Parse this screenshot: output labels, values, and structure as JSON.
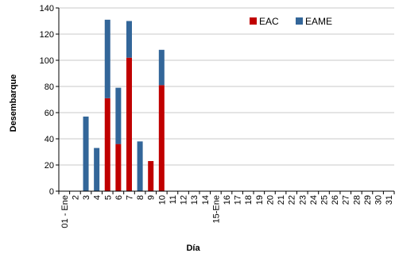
{
  "chart_data": {
    "type": "bar",
    "stacked": true,
    "xlabel": "Día",
    "ylabel": "Desembarque",
    "ylim": [
      0,
      140
    ],
    "ytick_step": 20,
    "grid": "horizontal",
    "legend_position": "top-right",
    "categories": [
      "01 - Ene",
      "2",
      "3",
      "4",
      "5",
      "6",
      "7",
      "8",
      "9",
      "10",
      "11",
      "12",
      "13",
      "14",
      "15-Ene",
      "16",
      "17",
      "18",
      "19",
      "20",
      "21",
      "22",
      "23",
      "24",
      "25",
      "26",
      "27",
      "28",
      "29",
      "30",
      "31"
    ],
    "series": [
      {
        "name": "EAC",
        "color": "#c00000",
        "values": [
          0,
          0,
          0,
          0,
          71,
          36,
          102,
          0,
          23,
          81,
          0,
          0,
          0,
          0,
          0,
          0,
          0,
          0,
          0,
          0,
          0,
          0,
          0,
          0,
          0,
          0,
          0,
          0,
          0,
          0,
          0
        ]
      },
      {
        "name": "EAME",
        "color": "#336699",
        "values": [
          0,
          0,
          57,
          33,
          60,
          43,
          28,
          38,
          0,
          27,
          0,
          0,
          0,
          0,
          0,
          0,
          0,
          0,
          0,
          0,
          0,
          0,
          0,
          0,
          0,
          0,
          0,
          0,
          0,
          0,
          0
        ]
      }
    ]
  }
}
